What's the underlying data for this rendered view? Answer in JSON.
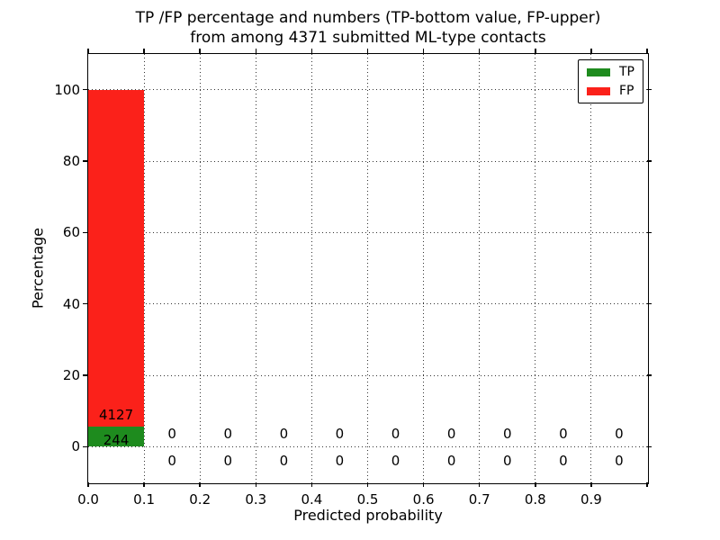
{
  "figure": {
    "title_line1": "TP /FP percentage and numbers (TP-bottom value, FP-upper)",
    "title_line2": "from among 4371 submitted ML-type contacts"
  },
  "axes": {
    "xlabel": "Predicted probability",
    "ylabel": "Percentage",
    "xticklabels": [
      "0.0",
      "0.1",
      "0.2",
      "0.3",
      "0.4",
      "0.5",
      "0.6",
      "0.7",
      "0.8",
      "0.9"
    ],
    "yticklabels": [
      "0",
      "20",
      "40",
      "60",
      "80",
      "100"
    ]
  },
  "legend": {
    "items": [
      {
        "label": "TP",
        "color": "#1e8b1e"
      },
      {
        "label": "FP",
        "color": "#fb211a"
      }
    ]
  },
  "chart_data": {
    "type": "bar",
    "stacked": true,
    "title": "TP /FP percentage and numbers (TP-bottom value, FP-upper)\nfrom among 4371 submitted ML-type contacts",
    "xlabel": "Predicted probability",
    "ylabel": "Percentage",
    "xlim": [
      0.0,
      1.0
    ],
    "ylim": [
      -10,
      110
    ],
    "xticks": [
      0.0,
      0.1,
      0.2,
      0.3,
      0.4,
      0.5,
      0.6,
      0.7,
      0.8,
      0.9
    ],
    "yticks": [
      0,
      20,
      40,
      60,
      80,
      100
    ],
    "grid": "dotted",
    "legend_position": "upper right",
    "total_contacts": 4371,
    "bin_edges": [
      0.0,
      0.1,
      0.2,
      0.3,
      0.4,
      0.5,
      0.6,
      0.7,
      0.8,
      0.9,
      1.0
    ],
    "series": [
      {
        "name": "TP",
        "color": "#1e8b1e",
        "counts": [
          244,
          0,
          0,
          0,
          0,
          0,
          0,
          0,
          0,
          0
        ],
        "percentages": [
          5.58,
          0,
          0,
          0,
          0,
          0,
          0,
          0,
          0,
          0
        ]
      },
      {
        "name": "FP",
        "color": "#fb211a",
        "counts": [
          4127,
          0,
          0,
          0,
          0,
          0,
          0,
          0,
          0,
          0
        ],
        "percentages": [
          94.42,
          0,
          0,
          0,
          0,
          0,
          0,
          0,
          0,
          0
        ]
      }
    ]
  }
}
